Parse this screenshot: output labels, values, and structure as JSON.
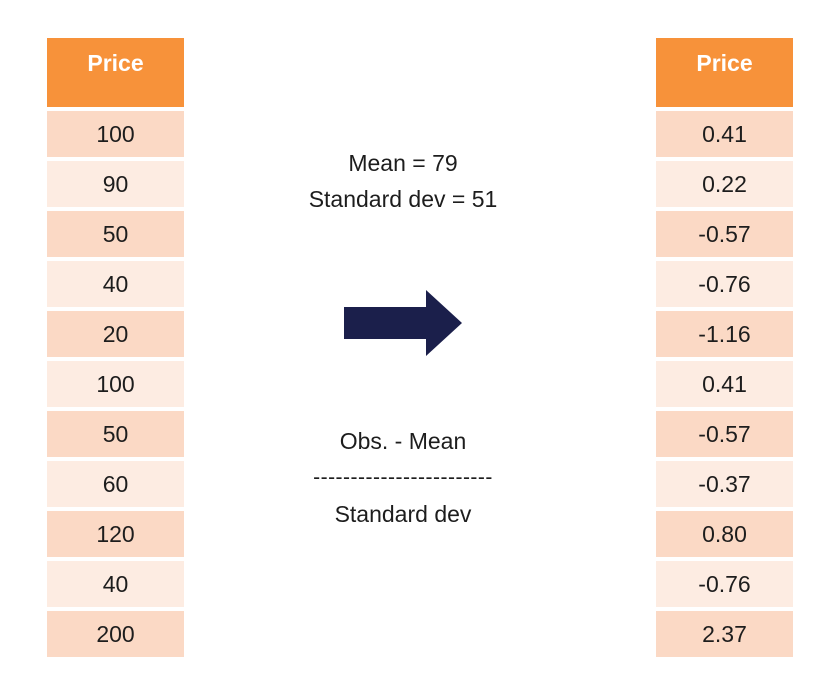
{
  "left_table": {
    "header": "Price",
    "rows": [
      "100",
      "90",
      "50",
      "40",
      "20",
      "100",
      "50",
      "60",
      "120",
      "40",
      "200"
    ]
  },
  "right_table": {
    "header": "Price",
    "rows": [
      "0.41",
      "0.22",
      "-0.57",
      "-0.76",
      "-1.16",
      "0.41",
      "-0.57",
      "-0.37",
      "0.80",
      "-0.76",
      "2.37"
    ]
  },
  "stats": {
    "mean": "Mean = 79",
    "std": "Standard dev = 51"
  },
  "formula": {
    "numerator": "Obs. - Mean",
    "divider": "------------------------",
    "denominator": "Standard dev"
  },
  "colors": {
    "header": "#f7923a",
    "row_odd": "#fbd9c5",
    "row_even": "#fdece2",
    "arrow": "#1b1f4b"
  },
  "icons": {
    "arrow": "right-arrow-icon"
  }
}
